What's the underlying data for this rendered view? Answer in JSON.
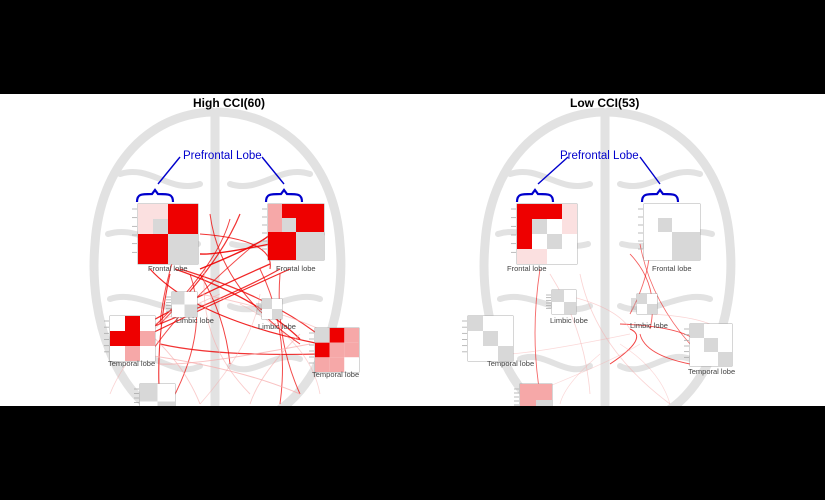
{
  "panels": [
    {
      "title": "High CCI(60)",
      "annotation": "Prefrontal Lobe",
      "labels": {
        "frontal_left": "Frontal lobe",
        "frontal_right": "Frontal lobe",
        "limbic": "Limbic lobe",
        "limbic_mid": "Limbic lobe",
        "temporal_left": "Temporal lobe",
        "temporal_right": "Temporal lobe"
      }
    },
    {
      "title": "Low CCI(53)",
      "annotation": "Prefrontal Lobe",
      "labels": {
        "frontal_left": "Frontal lobe",
        "frontal_right": "Frontal lobe",
        "limbic": "Limbic lobe",
        "limbic_mid": "Limbic lobe",
        "temporal_left": "Temporal lobe",
        "temporal_right": "Temporal lobe"
      }
    }
  ],
  "colors": {
    "background_bars": "#000000",
    "strong_connection": "#ee0000",
    "weak_connection": "#f6a0a0",
    "annotation": "#0000cc",
    "neutral_cell": "#d8d8d8",
    "brain_outline": "#e2e2e2"
  }
}
